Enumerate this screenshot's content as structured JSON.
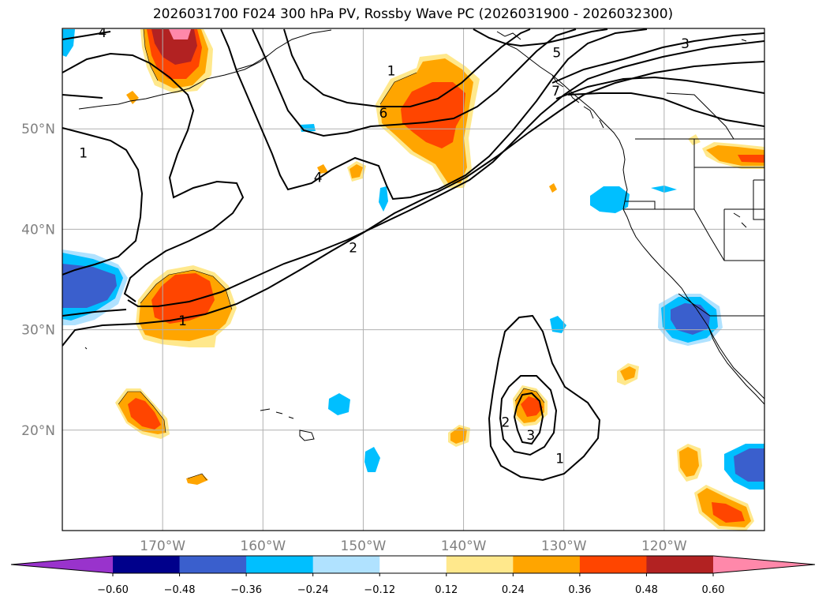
{
  "title": "2026031700 F024 300 hPa PV, Rossby Wave PC (2026031900 - 2026032300)",
  "colors": {
    "frame": "#000000",
    "grid": "#b0b0b0",
    "coast": "#000000",
    "contour": "#000000",
    "tick_label": "#808080"
  },
  "map": {
    "lon_range": [
      -180,
      -110
    ],
    "lat_range": [
      10,
      60
    ],
    "grid_lons": [
      -170,
      -160,
      -150,
      -140,
      -130,
      -120
    ],
    "grid_lats": [
      20,
      30,
      40,
      50
    ],
    "lon_labels": [
      "170°W",
      "160°W",
      "150°W",
      "140°W",
      "130°W",
      "120°W"
    ],
    "lat_labels": [
      "20°N",
      "30°N",
      "40°N",
      "50°N"
    ]
  },
  "contour_labels": [
    {
      "text": "4",
      "lon": -176,
      "lat": 59.6
    },
    {
      "text": "5",
      "lon": -130.7,
      "lat": 57.6
    },
    {
      "text": "3",
      "lon": -117.9,
      "lat": 58.5
    },
    {
      "text": "1",
      "lon": -147.2,
      "lat": 55.8
    },
    {
      "text": "6",
      "lon": -148,
      "lat": 51.6
    },
    {
      "text": "7",
      "lon": -130.8,
      "lat": 53.8
    },
    {
      "text": "1",
      "lon": -177.9,
      "lat": 47.6
    },
    {
      "text": "4",
      "lon": -154.5,
      "lat": 45.2
    },
    {
      "text": "2",
      "lon": -151,
      "lat": 38.2
    },
    {
      "text": "1",
      "lon": -168,
      "lat": 30.9
    },
    {
      "text": "2",
      "lon": -135.8,
      "lat": 20.8
    },
    {
      "text": "3",
      "lon": -133.3,
      "lat": 19.5
    },
    {
      "text": "1",
      "lon": -130.4,
      "lat": 17.2
    }
  ],
  "colorbar": {
    "levels": [
      -0.6,
      -0.48,
      -0.36,
      -0.24,
      -0.12,
      0.12,
      0.24,
      0.36,
      0.48,
      0.6
    ],
    "tick_labels": [
      "−0.60",
      "−0.48",
      "−0.36",
      "−0.24",
      "−0.12",
      "0.12",
      "0.24",
      "0.36",
      "0.48",
      "0.60"
    ],
    "colors": [
      "#9933cc",
      "#00008b",
      "#3a5fcd",
      "#00bfff",
      "#b0e2ff",
      "#ffffff",
      "#ffe88c",
      "#ffa500",
      "#ff4500",
      "#b22222",
      "#ff88aa"
    ]
  }
}
